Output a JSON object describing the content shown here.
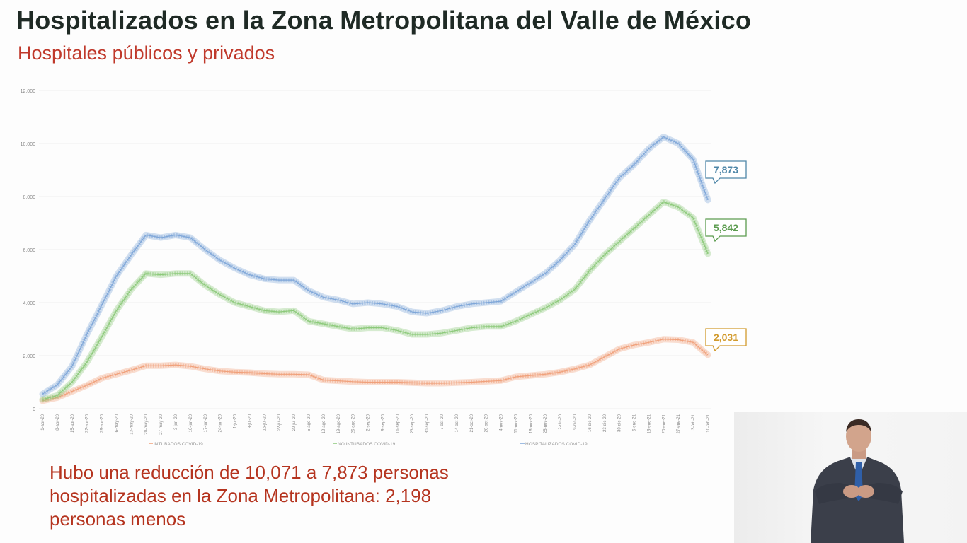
{
  "header": {
    "title": "Hospitalizados en la Zona Metropolitana del Valle de México",
    "subtitle": "Hospitales públicos y privados"
  },
  "summary": {
    "text": "Hubo una reducción de 10,071 a 7,873 personas hospitalizadas en la Zona Metropolitana: 2,198 personas menos"
  },
  "interpreter": {
    "description": "Sign language interpreter video inset"
  },
  "chart_data": {
    "type": "line",
    "title": "",
    "xlabel": "",
    "ylabel": "",
    "ylim": [
      0,
      12000
    ],
    "yticks": [
      0,
      2000,
      4000,
      6000,
      8000,
      10000,
      12000
    ],
    "ytick_labels": [
      "0",
      "2,000",
      "4,000",
      "6,000",
      "8,000",
      "10,000",
      "12,000"
    ],
    "grid": true,
    "legend_position": "bottom",
    "x": [
      "1-abr-20",
      "8-abr-20",
      "15-abr-20",
      "22-abr-20",
      "29-abr-20",
      "6-may-20",
      "13-may-20",
      "20-may-20",
      "27-may-20",
      "3-jun-20",
      "10-jun-20",
      "17-jun-20",
      "24-jun-20",
      "1-jul-20",
      "8-jul-20",
      "15-jul-20",
      "22-jul-20",
      "29-jul-20",
      "5-ago-20",
      "12-ago-20",
      "19-ago-20",
      "26-ago-20",
      "2-sep-20",
      "9-sep-20",
      "16-sep-20",
      "23-sep-20",
      "30-sep-20",
      "7-oct-20",
      "14-oct-20",
      "21-oct-20",
      "28-oct-20",
      "4-nov-20",
      "11-nov-20",
      "18-nov-20",
      "25-nov-20",
      "2-dic-20",
      "9-dic-20",
      "16-dic-20",
      "23-dic-20",
      "30-dic-20",
      "6-ene-21",
      "13-ene-21",
      "20-ene-21",
      "27-ene-21",
      "3-feb-21",
      "10-feb-21"
    ],
    "series": [
      {
        "name": "INTUBADOS COVID-19",
        "color": "#f0a07a",
        "values": [
          300,
          420,
          650,
          880,
          1150,
          1300,
          1450,
          1620,
          1620,
          1650,
          1600,
          1500,
          1420,
          1380,
          1360,
          1320,
          1300,
          1300,
          1280,
          1080,
          1050,
          1020,
          1000,
          1000,
          1000,
          980,
          960,
          960,
          980,
          1000,
          1030,
          1060,
          1200,
          1250,
          1300,
          1380,
          1500,
          1650,
          1950,
          2250,
          2400,
          2500,
          2620,
          2600,
          2500,
          2031
        ],
        "end_label": "2,031"
      },
      {
        "name": "NO INTUBADOS COVID-19",
        "color": "#8cc97a",
        "values": [
          350,
          500,
          1000,
          1750,
          2700,
          3700,
          4500,
          5100,
          5050,
          5100,
          5100,
          4650,
          4300,
          4000,
          3850,
          3700,
          3650,
          3700,
          3300,
          3200,
          3100,
          3000,
          3050,
          3050,
          2950,
          2800,
          2800,
          2850,
          2950,
          3050,
          3100,
          3100,
          3300,
          3550,
          3800,
          4100,
          4500,
          5200,
          5800,
          6300,
          6800,
          7300,
          7800,
          7600,
          7200,
          5842
        ],
        "end_label": "5,842"
      },
      {
        "name": "HOSPITALIZADOS COVID-19",
        "color": "#7ea6d8",
        "values": [
          550,
          900,
          1600,
          2800,
          3900,
          5000,
          5800,
          6550,
          6450,
          6550,
          6450,
          6000,
          5600,
          5300,
          5050,
          4900,
          4850,
          4850,
          4450,
          4200,
          4100,
          3950,
          4000,
          3950,
          3850,
          3650,
          3600,
          3700,
          3850,
          3950,
          4000,
          4050,
          4400,
          4750,
          5100,
          5600,
          6200,
          7100,
          7900,
          8700,
          9200,
          9800,
          10250,
          10000,
          9400,
          7873
        ],
        "end_label": "7,873"
      }
    ],
    "callouts": [
      {
        "series": "HOSPITALIZADOS COVID-19",
        "label": "7,873",
        "color": "#4f87a8"
      },
      {
        "series": "NO INTUBADOS COVID-19",
        "label": "5,842",
        "color": "#5c9c4f"
      },
      {
        "series": "INTUBADOS COVID-19",
        "label": "2,031",
        "color": "#d29b2e"
      }
    ]
  }
}
